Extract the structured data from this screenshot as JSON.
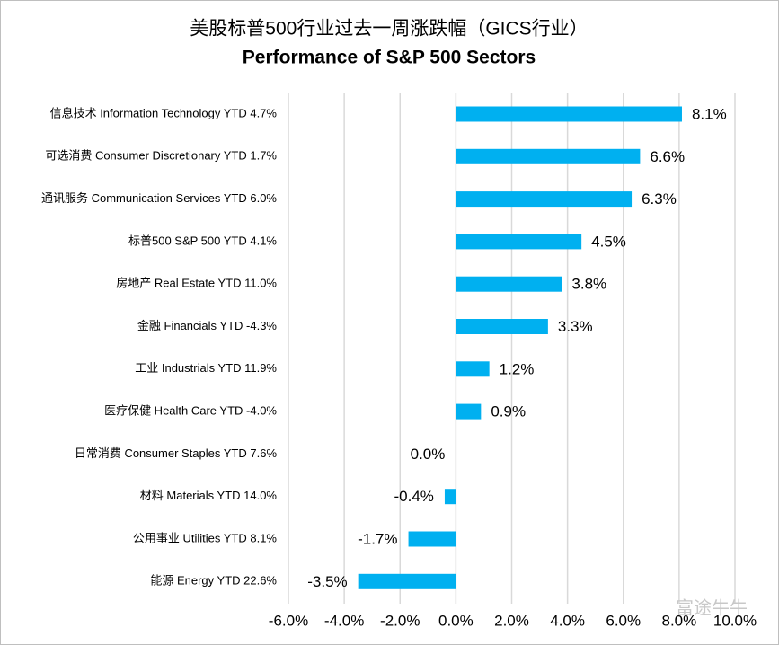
{
  "chart_data": {
    "type": "bar",
    "orientation": "horizontal",
    "title": "美股标普500行业过去一周涨跌幅（GICS行业）",
    "subtitle": "Performance of S&P 500 Sectors",
    "watermark": "富途牛牛",
    "categories": [
      "信息技术 Information Technology YTD 4.7%",
      "可选消费 Consumer Discretionary YTD 1.7%",
      "通讯服务 Communication Services YTD 6.0%",
      "标普500 S&P 500 YTD 4.1%",
      "房地产 Real Estate YTD 11.0%",
      "金融 Financials YTD -4.3%",
      "工业 Industrials YTD 11.9%",
      "医疗保健 Health Care YTD -4.0%",
      "日常消费 Consumer Staples YTD 7.6%",
      "材料 Materials YTD 14.0%",
      "公用事业 Utilities YTD 8.1%",
      "能源 Energy YTD 22.6%"
    ],
    "values": [
      8.1,
      6.6,
      6.3,
      4.5,
      3.8,
      3.3,
      1.2,
      0.9,
      0.0,
      -0.4,
      -1.7,
      -3.5
    ],
    "value_labels": [
      "8.1%",
      "6.6%",
      "6.3%",
      "4.5%",
      "3.8%",
      "3.3%",
      "1.2%",
      "0.9%",
      "0.0%",
      "-0.4%",
      "-1.7%",
      "-3.5%"
    ],
    "color": "#00b0f0",
    "xlim": [
      -6,
      10
    ],
    "xticks": [
      {
        "value": -6,
        "label": "-6.0%"
      },
      {
        "value": -4,
        "label": "-4.0%"
      },
      {
        "value": -2,
        "label": "-2.0%"
      },
      {
        "value": 0,
        "label": "0.0%"
      },
      {
        "value": 2,
        "label": "2.0%"
      },
      {
        "value": 4,
        "label": "4.0%"
      },
      {
        "value": 6,
        "label": "6.0%"
      },
      {
        "value": 8,
        "label": "8.0%"
      },
      {
        "value": 10,
        "label": "10.0%"
      }
    ],
    "grid": true
  }
}
